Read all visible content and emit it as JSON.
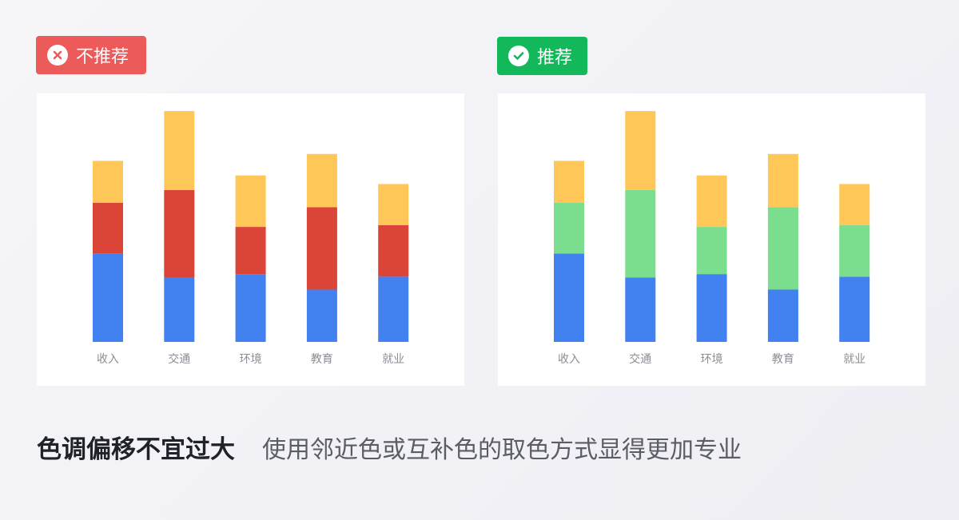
{
  "badges": {
    "bad_label": "不推荐",
    "good_label": "推荐",
    "bad_color": "#ed5a5a",
    "good_color": "#12b85a"
  },
  "caption": {
    "title": "色调偏移不宜过大",
    "description": "使用邻近色或互补色的取色方式显得更加专业"
  },
  "chart_data": [
    {
      "type": "bar",
      "stacked": true,
      "panel": "不推荐",
      "categories": [
        "收入",
        "交通",
        "环境",
        "教育",
        "就业"
      ],
      "series": [
        {
          "values": [
            103,
            75,
            79,
            61,
            76
          ],
          "color": "#4181f0"
        },
        {
          "values": [
            59,
            102,
            55,
            96,
            60
          ],
          "color": "#db4537"
        },
        {
          "values": [
            49,
            92,
            60,
            62,
            48
          ],
          "color": "#ffc758"
        }
      ],
      "ylim": [
        0,
        270
      ],
      "grid": false
    },
    {
      "type": "bar",
      "stacked": true,
      "panel": "推荐",
      "categories": [
        "收入",
        "交通",
        "环境",
        "教育",
        "就业"
      ],
      "series": [
        {
          "values": [
            103,
            75,
            79,
            61,
            76
          ],
          "color": "#4181f0"
        },
        {
          "values": [
            59,
            102,
            55,
            96,
            60
          ],
          "color": "#7ade8e"
        },
        {
          "values": [
            49,
            92,
            60,
            62,
            48
          ],
          "color": "#ffc758"
        }
      ],
      "ylim": [
        0,
        270
      ],
      "grid": false
    }
  ]
}
